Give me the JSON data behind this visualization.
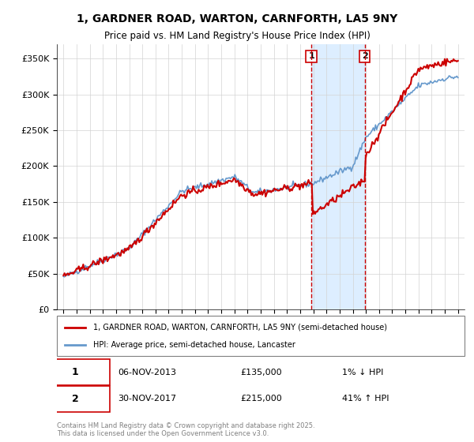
{
  "title1": "1, GARDNER ROAD, WARTON, CARNFORTH, LA5 9NY",
  "title2": "Price paid vs. HM Land Registry's House Price Index (HPI)",
  "ylabel_ticks": [
    "£0",
    "£50K",
    "£100K",
    "£150K",
    "£200K",
    "£250K",
    "£300K",
    "£350K"
  ],
  "ytick_values": [
    0,
    50000,
    100000,
    150000,
    200000,
    250000,
    300000,
    350000
  ],
  "ylim": [
    0,
    370000
  ],
  "legend_line1": "1, GARDNER ROAD, WARTON, CARNFORTH, LA5 9NY (semi-detached house)",
  "legend_line2": "HPI: Average price, semi-detached house, Lancaster",
  "marker1_label": "1",
  "marker1_date": "06-NOV-2013",
  "marker1_price": "£135,000",
  "marker1_hpi": "1% ↓ HPI",
  "marker2_label": "2",
  "marker2_date": "30-NOV-2017",
  "marker2_price": "£215,000",
  "marker2_hpi": "41% ↑ HPI",
  "footer": "Contains HM Land Registry data © Crown copyright and database right 2025.\nThis data is licensed under the Open Government Licence v3.0.",
  "red_color": "#cc0000",
  "blue_color": "#6699cc",
  "shading_color": "#ddeeff",
  "marker_box_color": "#cc0000"
}
